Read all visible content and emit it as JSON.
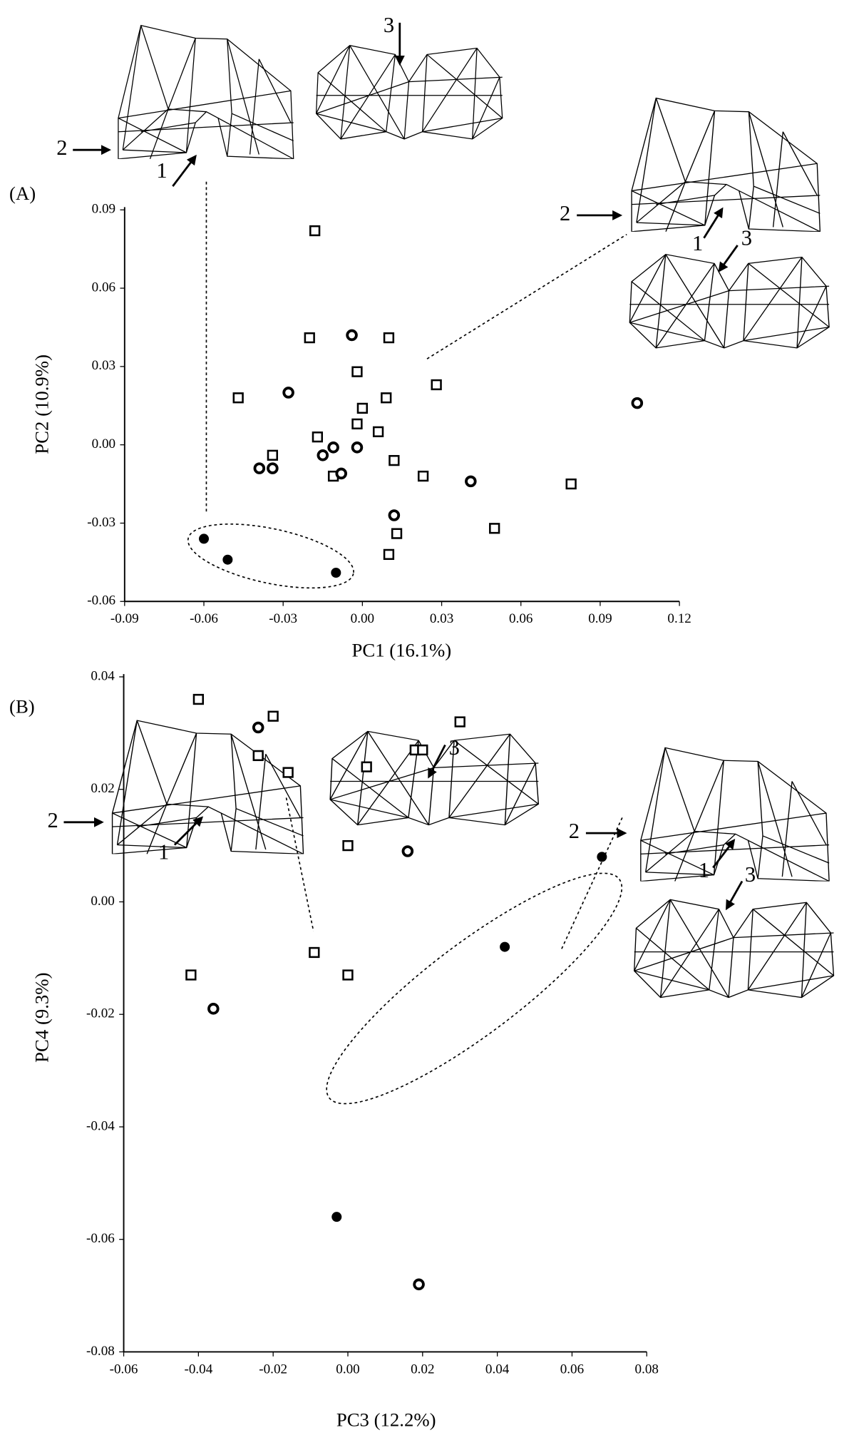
{
  "chart_data": [
    {
      "type": "scatter",
      "panel_label": "(A)",
      "x_label": "PC1  (16.1%)",
      "y_label": "PC2  (10.9%)",
      "xlim": [
        -0.09,
        0.12
      ],
      "xticks": [
        -0.09,
        -0.06,
        -0.03,
        {
          "value": 0,
          "label": "0.00"
        },
        0.03,
        0.06,
        0.09,
        0.12
      ],
      "ylim": [
        -0.06,
        0.09
      ],
      "yticks": [
        -0.06,
        -0.03,
        {
          "value": 0,
          "label": "0.00"
        },
        0.03,
        0.06,
        0.09
      ],
      "grid": false,
      "annotations": [
        "2",
        "1",
        "3",
        "2",
        "1",
        "3"
      ],
      "series": [
        {
          "marker": "square",
          "color": "#000000",
          "x": [
            -0.018,
            -0.02,
            0.01,
            -0.002,
            0.028,
            -0.047,
            0.009,
            0.0,
            -0.002,
            0.006,
            -0.017,
            -0.034,
            0.012,
            -0.011,
            0.023,
            0.079,
            0.05,
            0.013,
            0.01
          ],
          "values": [
            0.082,
            0.041,
            0.041,
            0.028,
            0.023,
            0.018,
            0.018,
            0.014,
            0.008,
            0.005,
            0.003,
            -0.004,
            -0.006,
            -0.012,
            -0.012,
            -0.015,
            -0.032,
            -0.034,
            -0.042
          ]
        },
        {
          "marker": "ring",
          "color": "#000000",
          "x": [
            -0.004,
            -0.028,
            0.104,
            -0.011,
            -0.002,
            -0.015,
            -0.039,
            -0.034,
            -0.008,
            0.041,
            0.012
          ],
          "values": [
            0.042,
            0.02,
            0.016,
            -0.001,
            -0.001,
            -0.004,
            -0.009,
            -0.009,
            -0.011,
            -0.014,
            -0.027
          ]
        },
        {
          "marker": "dot",
          "color": "#000000",
          "x": [
            -0.06,
            -0.051,
            -0.01
          ],
          "values": [
            -0.036,
            -0.044,
            -0.049
          ]
        }
      ]
    },
    {
      "type": "scatter",
      "panel_label": "(B)",
      "x_label": "PC3  (12.2%)",
      "y_label": "PC4  (9.3%)",
      "xlim": [
        -0.06,
        0.08
      ],
      "xticks": [
        -0.06,
        -0.04,
        -0.02,
        {
          "value": 0,
          "label": "0.00"
        },
        0.02,
        0.04,
        0.06,
        0.08
      ],
      "ylim": [
        -0.08,
        0.04
      ],
      "yticks": [
        -0.08,
        -0.06,
        -0.04,
        -0.02,
        {
          "value": 0,
          "label": "0.00"
        },
        0.02,
        0.04
      ],
      "grid": false,
      "annotations": [
        "2",
        "1",
        "3",
        "2",
        "1",
        "3"
      ],
      "series": [
        {
          "marker": "square",
          "color": "#000000",
          "x": [
            -0.04,
            -0.02,
            -0.024,
            -0.016,
            0.005,
            0.018,
            0.02,
            0.03,
            0.0,
            -0.009,
            0.0,
            -0.042
          ],
          "values": [
            0.036,
            0.033,
            0.026,
            0.023,
            0.024,
            0.027,
            0.027,
            0.032,
            0.01,
            -0.009,
            -0.013,
            -0.013
          ]
        },
        {
          "marker": "ring",
          "color": "#000000",
          "x": [
            -0.024,
            0.016,
            -0.036,
            0.019
          ],
          "values": [
            0.031,
            0.009,
            -0.019,
            -0.068
          ]
        },
        {
          "marker": "dot",
          "color": "#000000",
          "x": [
            0.068,
            0.042,
            -0.003
          ],
          "values": [
            0.008,
            -0.008,
            -0.056
          ]
        }
      ]
    }
  ]
}
